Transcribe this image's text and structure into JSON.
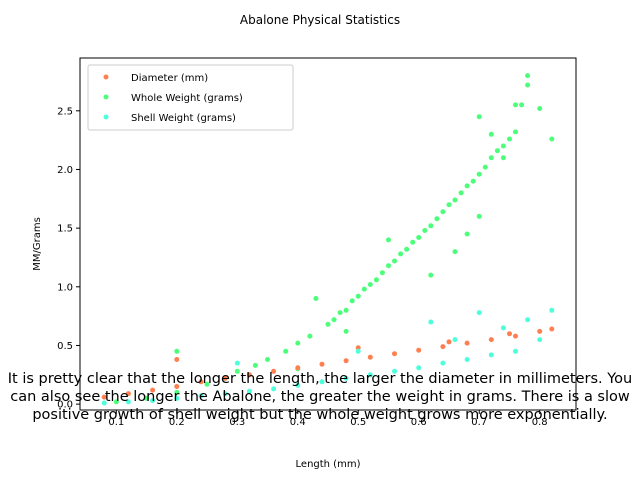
{
  "chart_data": {
    "type": "scatter",
    "title": "Abalone Physical Statistics",
    "xlabel": "Length (mm)",
    "ylabel": "MM/Grams",
    "xlim": [
      0.04,
      0.86
    ],
    "ylim": [
      -0.05,
      2.95
    ],
    "xticks": [
      0.1,
      0.2,
      0.3,
      0.4,
      0.5,
      0.6,
      0.7,
      0.8
    ],
    "yticks": [
      0.0,
      0.5,
      1.0,
      1.5,
      2.0,
      2.5
    ],
    "grid": false,
    "legend_position": "top-left",
    "series": [
      {
        "name": "Whole Weight (grams)",
        "color": "#4cff7a",
        "x": [
          0.1,
          0.15,
          0.2,
          0.2,
          0.25,
          0.28,
          0.3,
          0.33,
          0.35,
          0.38,
          0.4,
          0.42,
          0.43,
          0.45,
          0.46,
          0.47,
          0.48,
          0.49,
          0.5,
          0.51,
          0.52,
          0.53,
          0.54,
          0.55,
          0.56,
          0.57,
          0.58,
          0.59,
          0.6,
          0.61,
          0.62,
          0.63,
          0.64,
          0.65,
          0.66,
          0.67,
          0.68,
          0.69,
          0.7,
          0.71,
          0.72,
          0.73,
          0.74,
          0.75,
          0.76,
          0.77,
          0.78,
          0.8,
          0.82,
          0.4,
          0.48,
          0.55,
          0.62,
          0.7,
          0.76,
          0.78,
          0.7,
          0.72,
          0.74,
          0.66,
          0.68
        ],
        "y": [
          0.02,
          0.05,
          0.1,
          0.45,
          0.17,
          0.22,
          0.28,
          0.33,
          0.38,
          0.45,
          0.52,
          0.58,
          0.9,
          0.68,
          0.72,
          0.78,
          0.8,
          0.88,
          0.92,
          0.98,
          1.02,
          1.06,
          1.12,
          1.18,
          1.22,
          1.28,
          1.32,
          1.38,
          1.42,
          1.48,
          1.52,
          1.58,
          1.64,
          1.7,
          1.74,
          1.8,
          1.86,
          1.9,
          1.96,
          2.02,
          2.1,
          2.16,
          2.2,
          2.26,
          2.32,
          2.55,
          2.8,
          2.52,
          2.26,
          0.3,
          0.62,
          1.4,
          1.1,
          1.6,
          2.55,
          2.72,
          2.45,
          2.3,
          2.1,
          1.3,
          1.45
        ]
      },
      {
        "name": "Diameter (mm)",
        "color": "#ff7f50",
        "x": [
          0.08,
          0.12,
          0.16,
          0.2,
          0.24,
          0.28,
          0.32,
          0.36,
          0.4,
          0.44,
          0.48,
          0.52,
          0.56,
          0.6,
          0.64,
          0.68,
          0.72,
          0.76,
          0.8,
          0.82,
          0.2,
          0.5,
          0.65,
          0.75
        ],
        "y": [
          0.06,
          0.09,
          0.12,
          0.15,
          0.19,
          0.22,
          0.25,
          0.28,
          0.31,
          0.34,
          0.37,
          0.4,
          0.43,
          0.46,
          0.49,
          0.52,
          0.55,
          0.58,
          0.62,
          0.64,
          0.38,
          0.48,
          0.53,
          0.6
        ]
      },
      {
        "name": "Shell Weight (grams)",
        "color": "#4dffdb",
        "x": [
          0.08,
          0.12,
          0.16,
          0.2,
          0.24,
          0.28,
          0.32,
          0.36,
          0.4,
          0.44,
          0.48,
          0.52,
          0.56,
          0.6,
          0.64,
          0.68,
          0.72,
          0.76,
          0.8,
          0.82,
          0.3,
          0.5,
          0.62,
          0.66,
          0.7,
          0.74,
          0.78
        ],
        "y": [
          0.01,
          0.02,
          0.03,
          0.05,
          0.07,
          0.09,
          0.11,
          0.13,
          0.16,
          0.19,
          0.22,
          0.25,
          0.28,
          0.31,
          0.35,
          0.38,
          0.42,
          0.45,
          0.55,
          0.8,
          0.35,
          0.45,
          0.7,
          0.55,
          0.78,
          0.65,
          0.72
        ]
      }
    ],
    "legend": [
      {
        "label": "Diameter (mm)",
        "color": "#ff7f50"
      },
      {
        "label": "Whole Weight (grams)",
        "color": "#4cff7a"
      },
      {
        "label": "Shell Weight (grams)",
        "color": "#4dffdb"
      }
    ]
  },
  "caption": "It is pretty clear that the longer the length, the larger the diameter in millimeters. You can also see the longer the Abalone, the greater the weight in grams. There is a slow positive growth of shell weight but the whole weight grows more exponentially."
}
